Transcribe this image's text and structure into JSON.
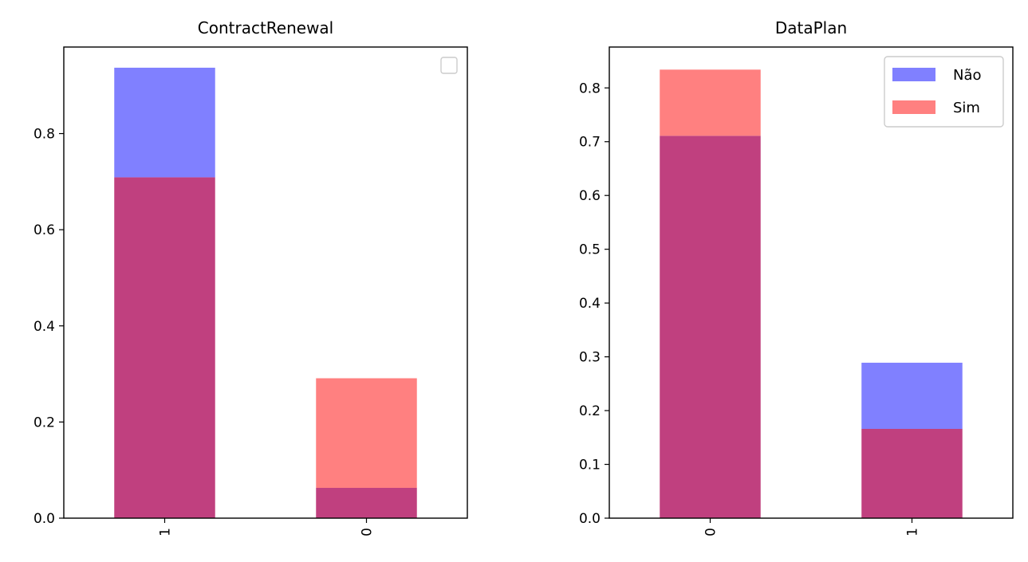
{
  "chart_data": [
    {
      "type": "bar",
      "stacking": "overlay",
      "title": "ContractRenewal",
      "xlabel": "",
      "ylabel": "",
      "categories": [
        "1",
        "0"
      ],
      "ylim": [
        0,
        0.98
      ],
      "yticks": [
        "0.0",
        "0.2",
        "0.4",
        "0.6",
        "0.8"
      ],
      "grid": false,
      "legend": {
        "position": "top-right",
        "entries": []
      },
      "series": [
        {
          "name": "Não",
          "color": "#8080ff",
          "values": [
            0.937,
            0.063
          ]
        },
        {
          "name": "Sim",
          "color": "#ff8080",
          "values": [
            0.709,
            0.291
          ]
        }
      ]
    },
    {
      "type": "bar",
      "stacking": "overlay",
      "title": "DataPlan",
      "xlabel": "",
      "ylabel": "",
      "categories": [
        "0",
        "1"
      ],
      "ylim": [
        0,
        0.876
      ],
      "yticks": [
        "0.0",
        "0.1",
        "0.2",
        "0.3",
        "0.4",
        "0.5",
        "0.6",
        "0.7",
        "0.8"
      ],
      "grid": false,
      "legend": {
        "position": "top-right",
        "entries": [
          "Não",
          "Sim"
        ]
      },
      "series": [
        {
          "name": "Não",
          "color": "#8080ff",
          "values": [
            0.711,
            0.289
          ]
        },
        {
          "name": "Sim",
          "color": "#ff8080",
          "values": [
            0.834,
            0.166
          ]
        }
      ]
    }
  ],
  "colors": {
    "blue": "#8080ff",
    "red": "#ff8080",
    "overlap": "#c0407f"
  }
}
